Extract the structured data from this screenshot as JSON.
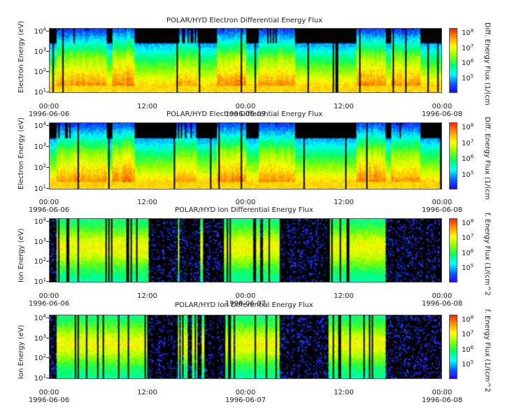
{
  "chart_data": [
    {
      "type": "heatmap",
      "title": "POLAR/HYD  Electron Differential Energy Flux",
      "ylabel": "Electron Energy (eV)",
      "colorbar_label": "Diff. Energy Flux (1/(cm",
      "yticks": [
        "10^1",
        "10^2",
        "10^3",
        "10^4"
      ],
      "colorbar_ticks": [
        "10^5",
        "10^6",
        "10^7",
        "10^8"
      ],
      "x_tick_times": [
        "00:00",
        "12:00",
        "00:00",
        "12:00",
        "00:00"
      ],
      "x_tick_dates": [
        "1996-06-06",
        "",
        "1996-06-07",
        "",
        "1996-06-08"
      ],
      "species": "electron"
    },
    {
      "type": "heatmap",
      "title": "POLAR/HYD  Electron Differential Energy Flux",
      "ylabel": "Electron Energy (eV)",
      "colorbar_label": "Diff. Energy Flux (1/(cm",
      "yticks": [
        "10^1",
        "10^2",
        "10^3",
        "10^4"
      ],
      "colorbar_ticks": [
        "10^5",
        "10^6",
        "10^7",
        "10^8"
      ],
      "x_tick_times": [
        "00:00",
        "12:00",
        "00:00",
        "12:00",
        "00:00"
      ],
      "x_tick_dates": [
        "1996-06-06",
        "",
        "",
        "",
        "1996-06-08"
      ],
      "species": "electron"
    },
    {
      "type": "heatmap",
      "title": "POLAR/HYD  Ion Differential Energy Flux",
      "ylabel": "Ion Energy (eV)",
      "colorbar_label": "f. Energy Flux (1/(cm^2",
      "yticks": [
        "10^1",
        "10^2",
        "10^3",
        "10^4"
      ],
      "colorbar_ticks": [
        "10^5",
        "10^6",
        "10^7",
        "10^8"
      ],
      "x_tick_times": [
        "00:00",
        "12:00",
        "00:00",
        "12:00",
        "00:00"
      ],
      "x_tick_dates": [
        "1996-06-06",
        "",
        "1996-06-07",
        "",
        "1996-06-08"
      ],
      "species": "ion"
    },
    {
      "type": "heatmap",
      "title": "POLAR/HYD  Ion Differential Energy Flux",
      "ylabel": "Ion Energy (eV)",
      "colorbar_label": "f. Energy Flux (1/(cm^2",
      "yticks": [
        "10^1",
        "10^2",
        "10^3",
        "10^4"
      ],
      "colorbar_ticks": [
        "10^5",
        "10^6",
        "10^7",
        "10^8"
      ],
      "x_tick_times": [
        "00:00",
        "12:00",
        "00:00",
        "12:00",
        "00:00"
      ],
      "x_tick_dates": [
        "1996-06-06",
        "",
        "1996-06-07",
        "",
        "1996-06-08"
      ],
      "species": "ion"
    }
  ],
  "colormap": [
    "#2b00ff",
    "#0066ff",
    "#00ffff",
    "#00ff66",
    "#88ff00",
    "#ffff00",
    "#ff9900",
    "#ff2200"
  ]
}
